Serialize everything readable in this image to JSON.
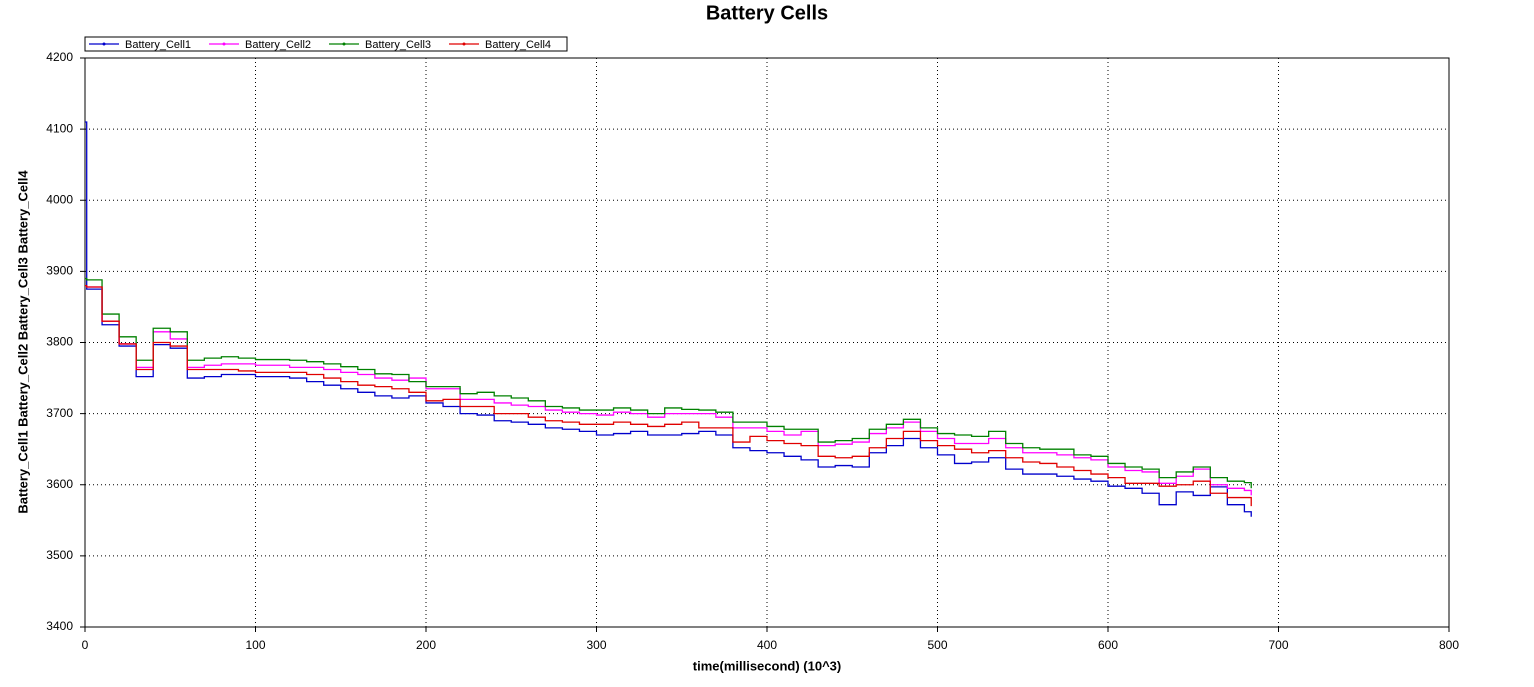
{
  "chart_data": {
    "type": "line",
    "step": true,
    "title": "Battery Cells",
    "xlabel": "time(millisecond) (10^3)",
    "ylabel": "Battery_Cell1 Battery_Cell2 Battery_Cell3 Battery_Cell4",
    "x": [
      0,
      1,
      10,
      20,
      30,
      40,
      50,
      60,
      70,
      80,
      90,
      100,
      110,
      120,
      130,
      140,
      150,
      160,
      170,
      180,
      190,
      200,
      210,
      220,
      230,
      240,
      250,
      260,
      270,
      280,
      290,
      300,
      310,
      320,
      330,
      340,
      350,
      360,
      370,
      380,
      390,
      400,
      410,
      420,
      430,
      440,
      450,
      460,
      470,
      480,
      490,
      500,
      510,
      520,
      530,
      540,
      550,
      560,
      570,
      580,
      590,
      600,
      610,
      620,
      630,
      640,
      650,
      660,
      670,
      680,
      684
    ],
    "series": [
      {
        "name": "Battery_Cell1",
        "color": "#0000cc",
        "values": [
          4110,
          3875,
          3825,
          3795,
          3752,
          3797,
          3792,
          3750,
          3752,
          3755,
          3755,
          3752,
          3752,
          3750,
          3745,
          3740,
          3735,
          3730,
          3725,
          3722,
          3725,
          3715,
          3710,
          3700,
          3698,
          3690,
          3688,
          3685,
          3680,
          3678,
          3675,
          3670,
          3672,
          3675,
          3670,
          3670,
          3672,
          3675,
          3670,
          3652,
          3648,
          3645,
          3640,
          3635,
          3625,
          3627,
          3625,
          3645,
          3655,
          3665,
          3652,
          3642,
          3630,
          3632,
          3638,
          3622,
          3615,
          3615,
          3612,
          3608,
          3605,
          3598,
          3595,
          3588,
          3572,
          3590,
          3585,
          3597,
          3572,
          3562,
          3555
        ]
      },
      {
        "name": "Battery_Cell2",
        "color": "#ff00ff",
        "values": [
          3880,
          3878,
          3830,
          3798,
          3765,
          3815,
          3805,
          3765,
          3768,
          3770,
          3770,
          3768,
          3768,
          3765,
          3765,
          3762,
          3758,
          3755,
          3750,
          3747,
          3750,
          3735,
          3735,
          3720,
          3720,
          3715,
          3712,
          3710,
          3705,
          3702,
          3700,
          3698,
          3702,
          3700,
          3695,
          3700,
          3700,
          3700,
          3695,
          3680,
          3680,
          3675,
          3670,
          3675,
          3655,
          3657,
          3660,
          3672,
          3680,
          3688,
          3675,
          3665,
          3658,
          3658,
          3665,
          3652,
          3645,
          3645,
          3642,
          3638,
          3635,
          3625,
          3620,
          3618,
          3602,
          3612,
          3622,
          3600,
          3595,
          3592,
          3585
        ]
      },
      {
        "name": "Battery_Cell3",
        "color": "#008000",
        "values": [
          3890,
          3888,
          3840,
          3808,
          3775,
          3820,
          3815,
          3775,
          3778,
          3780,
          3778,
          3776,
          3776,
          3775,
          3773,
          3770,
          3766,
          3762,
          3756,
          3755,
          3745,
          3738,
          3738,
          3728,
          3730,
          3725,
          3722,
          3718,
          3710,
          3708,
          3705,
          3705,
          3708,
          3705,
          3700,
          3708,
          3706,
          3705,
          3702,
          3688,
          3688,
          3682,
          3678,
          3678,
          3660,
          3662,
          3665,
          3678,
          3685,
          3692,
          3680,
          3672,
          3670,
          3668,
          3675,
          3658,
          3652,
          3650,
          3650,
          3642,
          3640,
          3630,
          3625,
          3622,
          3610,
          3618,
          3625,
          3610,
          3605,
          3603,
          3595
        ]
      },
      {
        "name": "Battery_Cell4",
        "color": "#e00000",
        "values": [
          3880,
          3878,
          3830,
          3798,
          3762,
          3800,
          3795,
          3762,
          3762,
          3762,
          3760,
          3758,
          3758,
          3758,
          3755,
          3750,
          3745,
          3740,
          3738,
          3735,
          3730,
          3718,
          3720,
          3710,
          3710,
          3700,
          3700,
          3695,
          3690,
          3688,
          3685,
          3685,
          3688,
          3685,
          3682,
          3685,
          3688,
          3680,
          3680,
          3660,
          3668,
          3662,
          3658,
          3655,
          3640,
          3638,
          3640,
          3652,
          3665,
          3675,
          3662,
          3655,
          3650,
          3645,
          3648,
          3638,
          3632,
          3630,
          3625,
          3620,
          3615,
          3610,
          3602,
          3602,
          3598,
          3600,
          3605,
          3588,
          3582,
          3582,
          3570
        ]
      }
    ],
    "xlim": [
      0,
      800
    ],
    "xticks": [
      0,
      100,
      200,
      300,
      400,
      500,
      600,
      700,
      800
    ],
    "ylim": [
      3400,
      4200
    ],
    "yticks": [
      3400,
      3500,
      3600,
      3700,
      3800,
      3900,
      4000,
      4100,
      4200
    ],
    "grid": true,
    "legend": "top-left"
  }
}
